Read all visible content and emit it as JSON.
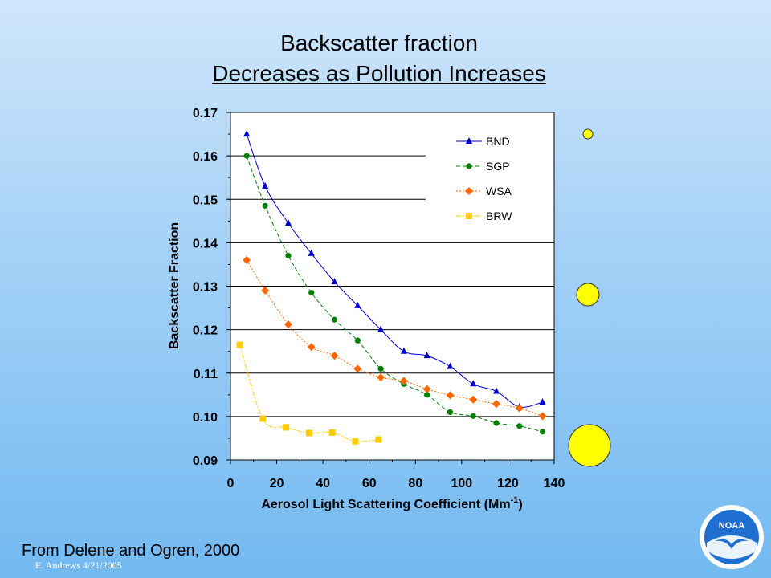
{
  "slide": {
    "title_line1": "Backscatter fraction",
    "title_line2": "Decreases as Pollution Increases",
    "source": "From Delene and Ogren, 2000",
    "author": "E. Andrews  4/21/2005",
    "logo_text": "NOAA"
  },
  "chart_data": {
    "type": "line",
    "xlabel": "Aerosol Light Scattering Coefficient (Mm",
    "xlabel_sup": "-1",
    "xlabel_end": ")",
    "ylabel": "Backscatter Fraction",
    "xlim": [
      0,
      140
    ],
    "ylim": [
      0.09,
      0.17
    ],
    "x_ticks": [
      "0",
      "20",
      "40",
      "60",
      "80",
      "100",
      "120",
      "140"
    ],
    "y_ticks": [
      "0.09",
      "0.10",
      "0.11",
      "0.12",
      "0.13",
      "0.14",
      "0.15",
      "0.16",
      "0.17"
    ],
    "grid": "horizontal",
    "legend_position": "top-right",
    "series": [
      {
        "name": "BND",
        "color": "#0000cc",
        "marker": "triangle",
        "dash": "solid",
        "x": [
          7,
          15,
          25,
          35,
          45,
          55,
          65,
          75,
          85,
          95,
          105,
          115,
          125,
          135
        ],
        "y": [
          0.165,
          0.153,
          0.1445,
          0.1375,
          0.131,
          0.1255,
          0.12,
          0.115,
          0.114,
          0.1115,
          0.1075,
          0.1058,
          0.1022,
          0.1033
        ]
      },
      {
        "name": "SGP",
        "color": "#008000",
        "marker": "circle",
        "dash": "dashed",
        "x": [
          7,
          15,
          25,
          35,
          45,
          55,
          65,
          75,
          85,
          95,
          105,
          115,
          125,
          135
        ],
        "y": [
          0.16,
          0.1485,
          0.137,
          0.1285,
          0.1223,
          0.1175,
          0.111,
          0.1075,
          0.105,
          0.101,
          0.1001,
          0.0985,
          0.0978,
          0.0965
        ]
      },
      {
        "name": "WSA",
        "color": "#ff6600",
        "marker": "diamond",
        "dash": "dotted",
        "x": [
          7,
          15,
          25,
          35,
          45,
          55,
          65,
          75,
          85,
          95,
          105,
          115,
          125,
          135
        ],
        "y": [
          0.136,
          0.129,
          0.1212,
          0.116,
          0.114,
          0.111,
          0.109,
          0.1082,
          0.1063,
          0.1049,
          0.1039,
          0.1029,
          0.1019,
          0.1001
        ]
      },
      {
        "name": "BRW",
        "color": "#ffcc00",
        "marker": "square",
        "dash": "dashdot",
        "x": [
          4,
          14,
          24,
          34,
          44,
          54,
          64
        ],
        "y": [
          0.1165,
          0.0995,
          0.0975,
          0.0962,
          0.0963,
          0.0943,
          0.0947
        ]
      }
    ],
    "bubbles": [
      {
        "size": "small",
        "color": "#ffff00"
      },
      {
        "size": "medium",
        "color": "#ffff00"
      },
      {
        "size": "large",
        "color": "#ffff00"
      }
    ]
  }
}
